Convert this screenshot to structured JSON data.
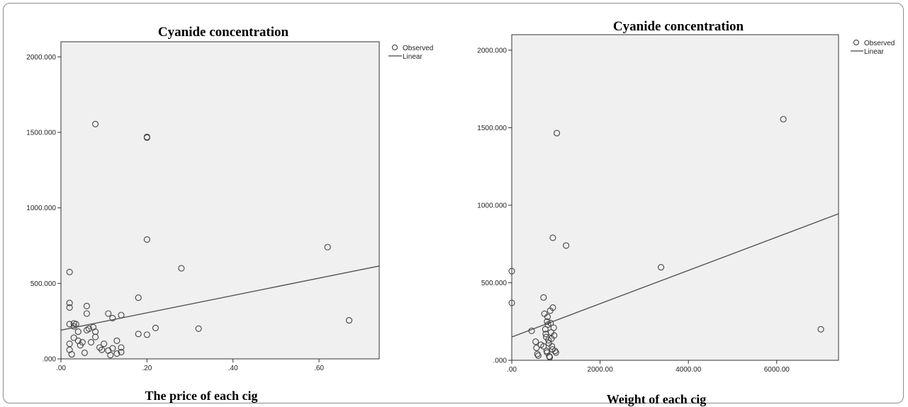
{
  "chart_data": [
    {
      "type": "scatter",
      "title": "Cyanide concentration",
      "xlabel": "The price of each cig",
      "ylabel": "",
      "xlim": [
        0,
        0.74
      ],
      "ylim": [
        0,
        2100
      ],
      "x_ticks": [
        0,
        0.2,
        0.4,
        0.6
      ],
      "x_tick_labels": [
        ".00",
        ".20",
        ".40",
        ".60"
      ],
      "y_ticks": [
        0,
        500,
        1000,
        1500,
        2000
      ],
      "y_tick_labels": [
        ".000",
        "500.000",
        "1000.000",
        "1500.000",
        "2000.000"
      ],
      "legend": {
        "observed": "Observed",
        "linear": "Linear",
        "position": "outside-top-right"
      },
      "grid": false,
      "series": [
        {
          "name": "Observed",
          "kind": "points",
          "x": [
            0.02,
            0.02,
            0.02,
            0.02,
            0.02,
            0.02,
            0.025,
            0.03,
            0.03,
            0.03,
            0.035,
            0.04,
            0.04,
            0.045,
            0.06,
            0.06,
            0.06,
            0.065,
            0.07,
            0.075,
            0.08,
            0.08,
            0.09,
            0.1,
            0.11,
            0.11,
            0.12,
            0.12,
            0.13,
            0.13,
            0.14,
            0.14,
            0.14,
            0.18,
            0.18,
            0.2,
            0.2,
            0.2,
            0.22,
            0.28,
            0.32,
            0.62,
            0.67,
            0.08,
            0.2,
            0.115,
            0.095,
            0.05,
            0.055
          ],
          "y": [
            575,
            370,
            340,
            230,
            100,
            60,
            30,
            235,
            215,
            140,
            230,
            180,
            120,
            90,
            350,
            300,
            190,
            200,
            110,
            210,
            180,
            145,
            75,
            100,
            300,
            55,
            270,
            70,
            120,
            35,
            290,
            75,
            45,
            405,
            165,
            790,
            160,
            1465,
            205,
            600,
            200,
            740,
            255,
            1555,
            1470,
            25,
            60,
            110,
            40
          ]
        },
        {
          "name": "Linear",
          "kind": "line",
          "x": [
            0,
            0.74
          ],
          "y": [
            190,
            615
          ]
        }
      ]
    },
    {
      "type": "scatter",
      "title": "Cyanide concentration",
      "xlabel": "Weight of each cig",
      "ylabel": "",
      "xlim": [
        0,
        7400
      ],
      "ylim": [
        0,
        2100
      ],
      "x_ticks": [
        0,
        2000,
        4000,
        6000
      ],
      "x_tick_labels": [
        ".00",
        "2000.00",
        "4000.00",
        "6000.00"
      ],
      "y_ticks": [
        0,
        500,
        1000,
        1500,
        2000
      ],
      "y_tick_labels": [
        ".000",
        "500.000",
        "1000.000",
        "1500.000",
        "2000.000"
      ],
      "legend": {
        "observed": "Observed",
        "linear": "Linear",
        "position": "outside-top-right"
      },
      "grid": false,
      "series": [
        {
          "name": "Observed",
          "kind": "points",
          "x": [
            0,
            0,
            1020,
            930,
            1230,
            3380,
            6150,
            7000,
            720,
            450,
            540,
            560,
            580,
            600,
            660,
            720,
            740,
            760,
            770,
            780,
            790,
            800,
            800,
            810,
            820,
            830,
            840,
            850,
            860,
            870,
            880,
            890,
            900,
            910,
            920,
            930,
            950,
            960,
            980,
            1000
          ],
          "y": [
            575,
            370,
            1465,
            790,
            740,
            600,
            1555,
            200,
            405,
            190,
            120,
            80,
            40,
            30,
            100,
            90,
            300,
            200,
            170,
            150,
            60,
            250,
            50,
            280,
            230,
            130,
            110,
            25,
            20,
            320,
            240,
            180,
            140,
            90,
            70,
            340,
            210,
            160,
            60,
            50
          ]
        },
        {
          "name": "Linear",
          "kind": "line",
          "x": [
            0,
            7400
          ],
          "y": [
            150,
            945
          ]
        }
      ]
    }
  ]
}
